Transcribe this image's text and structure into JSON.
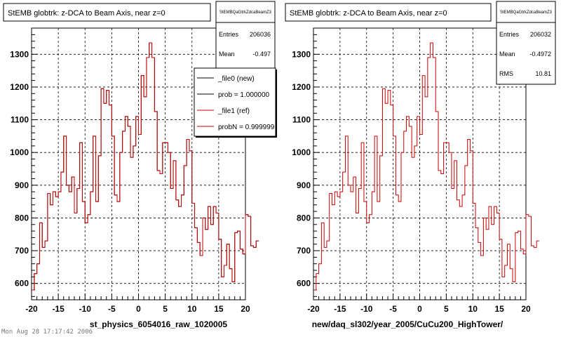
{
  "footer": "Mon Aug 28 17:17:42 2006",
  "chart_data": [
    {
      "type": "line",
      "title": "StEMB globtrk: z-DCA to Beam Axis, near z=0",
      "xlabel": "st_physics_6054016_raw_1020005",
      "ylabel": "",
      "xlim": [
        -20,
        20
      ],
      "ylim": [
        550,
        1380
      ],
      "xticks": [
        -20,
        -15,
        -10,
        -5,
        0,
        5,
        10,
        15,
        20
      ],
      "yticks": [
        600,
        700,
        800,
        900,
        1000,
        1100,
        1200,
        1300
      ],
      "grid": true,
      "stats": {
        "name": "StEMBQaGtrkZdcaBeamZ3",
        "rows": [
          {
            "label": "Entries",
            "value": "206036"
          },
          {
            "label": "Mean",
            "value": "-0.497"
          }
        ]
      },
      "legend": {
        "position": "top-right",
        "entries": [
          {
            "label": "_file0 (new)",
            "color": "#000000"
          },
          {
            "label": "prob = 1.000000",
            "color": "#000000"
          },
          {
            "label": "_file1 (ref)",
            "color": "#cc0000"
          },
          {
            "label": "probN = 0.999999",
            "color": "#cc0000"
          }
        ]
      },
      "series": [
        {
          "name": "_file0 (new)",
          "color": "#000000",
          "bin_width": 0.5,
          "x_start": -20,
          "values": [
            580,
            630,
            660,
            785,
            710,
            730,
            875,
            840,
            880,
            865,
            880,
            940,
            1050,
            900,
            880,
            925,
            815,
            890,
            1030,
            850,
            785,
            810,
            880,
            1050,
            850,
            990,
            1195,
            1150,
            1190,
            1145,
            1050,
            870,
            850,
            1000,
            1065,
            1110,
            1080,
            985,
            1020,
            1110,
            1055,
            1235,
            1170,
            1290,
            1335,
            1290,
            1125,
            945,
            935,
            1030,
            1030,
            1000,
            890,
            975,
            855,
            835,
            870,
            960,
            1040,
            1005,
            845,
            770,
            725,
            685,
            800,
            765,
            835,
            780,
            835,
            815,
            735,
            620,
            655,
            720,
            645,
            605,
            755,
            760,
            705,
            690,
            810,
            805,
            715,
            710,
            730
          ]
        },
        {
          "name": "_file1 (ref)",
          "color": "#cc0000",
          "bin_width": 0.5,
          "x_start": -20,
          "values": [
            580,
            630,
            660,
            785,
            710,
            730,
            875,
            840,
            880,
            865,
            880,
            940,
            1050,
            900,
            880,
            925,
            815,
            890,
            1030,
            850,
            785,
            810,
            880,
            1050,
            850,
            990,
            1195,
            1150,
            1190,
            1145,
            1050,
            870,
            850,
            1000,
            1065,
            1110,
            1080,
            985,
            1020,
            1110,
            1055,
            1235,
            1170,
            1290,
            1335,
            1290,
            1125,
            945,
            935,
            1030,
            1030,
            1000,
            890,
            975,
            855,
            835,
            870,
            960,
            1040,
            1005,
            845,
            770,
            725,
            685,
            800,
            765,
            835,
            780,
            835,
            815,
            735,
            620,
            655,
            720,
            645,
            605,
            755,
            760,
            705,
            690,
            810,
            805,
            715,
            710,
            730
          ]
        }
      ]
    },
    {
      "type": "line",
      "title": "StEMB globtrk: z-DCA to Beam Axis, near z=0",
      "xlabel": "new/daq_sl302/year_2005/CuCu200_HighTower/",
      "ylabel": "",
      "xlim": [
        -20,
        20
      ],
      "ylim": [
        550,
        1380
      ],
      "xticks": [
        -20,
        -15,
        -10,
        -5,
        0,
        5,
        10,
        15,
        20
      ],
      "yticks": [
        600,
        700,
        800,
        900,
        1000,
        1100,
        1200,
        1300
      ],
      "grid": true,
      "stats": {
        "name": "StEMBQaGtrkZdcaBeamZ3",
        "rows": [
          {
            "label": "Entries",
            "value": "206032"
          },
          {
            "label": "Mean",
            "value": "-0.4972"
          },
          {
            "label": "RMS",
            "value": "10.81"
          }
        ]
      },
      "series": [
        {
          "name": "",
          "color": "#cc0000",
          "bin_width": 0.5,
          "x_start": -20,
          "values": [
            580,
            630,
            660,
            785,
            710,
            730,
            875,
            840,
            880,
            865,
            880,
            940,
            1050,
            900,
            880,
            925,
            815,
            890,
            1030,
            850,
            785,
            810,
            880,
            1050,
            850,
            990,
            1195,
            1150,
            1190,
            1145,
            1050,
            870,
            850,
            1000,
            1065,
            1110,
            1080,
            985,
            1020,
            1110,
            1055,
            1235,
            1170,
            1290,
            1335,
            1290,
            1125,
            945,
            935,
            1030,
            1030,
            1000,
            890,
            975,
            855,
            835,
            870,
            960,
            1040,
            1005,
            845,
            770,
            725,
            685,
            800,
            765,
            835,
            780,
            835,
            815,
            735,
            620,
            655,
            720,
            645,
            605,
            755,
            760,
            705,
            690,
            810,
            805,
            715,
            710,
            730
          ]
        }
      ]
    }
  ]
}
